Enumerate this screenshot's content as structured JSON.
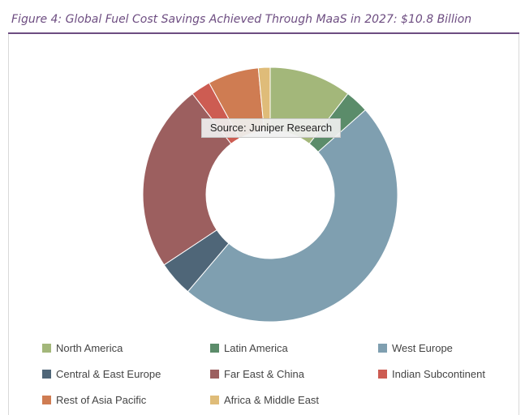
{
  "header": {
    "title": "Figure 4: Global Fuel Cost Savings Achieved Through MaaS in 2027: $10.8 Billion"
  },
  "source_label": "Source: Juniper Research",
  "chart_data": {
    "type": "pie",
    "donut": true,
    "categories": [
      "North America",
      "Latin America",
      "West Europe",
      "Central & East Europe",
      "Far East & China",
      "Indian Subcontinent",
      "Rest of Asia Pacific",
      "Africa & Middle East"
    ],
    "values": [
      10.5,
      3.0,
      48.0,
      4.5,
      24.0,
      2.5,
      6.5,
      1.5
    ],
    "colors": [
      "#a3b77a",
      "#5b8c6a",
      "#7f9fb0",
      "#4f6678",
      "#9c5f5f",
      "#cd5c52",
      "#cf7c52",
      "#dfbc79"
    ],
    "legend_position": "bottom"
  }
}
